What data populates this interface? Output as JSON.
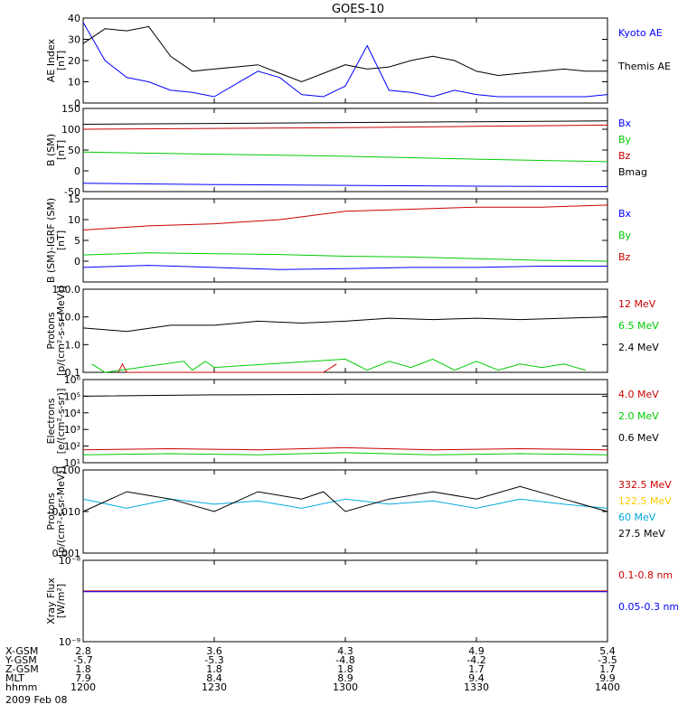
{
  "title": "GOES-10",
  "chart_data": [
    {
      "type": "line",
      "ylabel": [
        "AE Index",
        "[nT]"
      ],
      "ylim": [
        0,
        40
      ],
      "yticks": [
        "0",
        "10",
        "20",
        "30",
        "40"
      ],
      "series": [
        {
          "name": "Kyoto AE",
          "color": "#0000ff",
          "x": [
            0,
            5,
            10,
            15,
            20,
            25,
            30,
            35,
            40,
            45,
            50,
            55,
            60,
            65,
            70,
            75,
            80,
            85,
            90,
            95,
            100,
            105,
            110,
            115,
            120
          ],
          "y": [
            38,
            20,
            12,
            10,
            6,
            5,
            3,
            9,
            15,
            12,
            4,
            3,
            8,
            27,
            6,
            5,
            3,
            6,
            4,
            3,
            3,
            3,
            3,
            3,
            4
          ]
        },
        {
          "name": "Themis AE",
          "color": "#000000",
          "x": [
            0,
            5,
            10,
            15,
            20,
            25,
            30,
            35,
            40,
            45,
            50,
            55,
            60,
            65,
            70,
            75,
            80,
            85,
            90,
            95,
            100,
            105,
            110,
            115,
            120
          ],
          "y": [
            28,
            35,
            34,
            36,
            22,
            15,
            16,
            17,
            18,
            14,
            10,
            14,
            18,
            16,
            17,
            20,
            22,
            20,
            15,
            13,
            14,
            15,
            16,
            15,
            15
          ]
        }
      ]
    },
    {
      "type": "line",
      "ylabel": [
        "B (SM)",
        "[nT]"
      ],
      "ylim": [
        -50,
        150
      ],
      "yticks": [
        "-50",
        "0",
        "50",
        "100",
        "150"
      ],
      "series": [
        {
          "name": "Bx",
          "color": "#0000ff",
          "x": [
            0,
            30,
            60,
            90,
            120
          ],
          "y": [
            -30,
            -33,
            -35,
            -37,
            -38
          ]
        },
        {
          "name": "By",
          "color": "#00cc00",
          "x": [
            0,
            30,
            60,
            90,
            120
          ],
          "y": [
            45,
            40,
            35,
            28,
            22
          ]
        },
        {
          "name": "Bz",
          "color": "#cc0000",
          "x": [
            0,
            30,
            60,
            90,
            120
          ],
          "y": [
            100,
            102,
            104,
            107,
            110
          ]
        },
        {
          "name": "Bmag",
          "color": "#000000",
          "x": [
            0,
            30,
            60,
            90,
            120
          ],
          "y": [
            112,
            114,
            116,
            118,
            120
          ]
        }
      ]
    },
    {
      "type": "line",
      "ylabel": [
        "B (SM)-IGRF (SM)",
        "[nT]"
      ],
      "ylim": [
        -5,
        15
      ],
      "yticks": [
        "0",
        "5",
        "10",
        "15"
      ],
      "series": [
        {
          "name": "Bx",
          "color": "#0000ff",
          "x": [
            0,
            15,
            30,
            45,
            60,
            75,
            90,
            105,
            120
          ],
          "y": [
            -1.5,
            -1,
            -1.5,
            -2,
            -1.8,
            -1.5,
            -1.5,
            -1.2,
            -1.2
          ]
        },
        {
          "name": "By",
          "color": "#00cc00",
          "x": [
            0,
            15,
            30,
            45,
            60,
            75,
            90,
            105,
            120
          ],
          "y": [
            1.5,
            2,
            1.8,
            1.6,
            1.2,
            1,
            0.6,
            0.2,
            0
          ]
        },
        {
          "name": "Bz",
          "color": "#cc0000",
          "x": [
            0,
            15,
            30,
            45,
            60,
            75,
            90,
            105,
            120
          ],
          "y": [
            7.5,
            8.5,
            9,
            10,
            12,
            12.5,
            13,
            13,
            13.5
          ]
        }
      ]
    },
    {
      "type": "line",
      "ylabel": [
        "Protons",
        "[p/(cm²-s-sr-MeV)]"
      ],
      "ylim": [
        0.1,
        100
      ],
      "log": true,
      "yticks": [
        "0.1",
        "1.0",
        "10.0",
        "100.0"
      ],
      "series": [
        {
          "name": "12 MeV",
          "color": "#cc0000",
          "x": [
            8,
            9,
            10,
            55,
            58
          ],
          "y": [
            0.1,
            0.2,
            0.1,
            0.1,
            0.2
          ]
        },
        {
          "name": "6.5 MeV",
          "color": "#00cc00",
          "x": [
            2,
            5,
            23,
            25,
            28,
            30,
            60,
            65,
            70,
            75,
            80,
            85,
            90,
            95,
            100,
            105,
            110,
            115
          ],
          "y": [
            0.2,
            0.1,
            0.25,
            0.12,
            0.25,
            0.15,
            0.3,
            0.12,
            0.25,
            0.15,
            0.3,
            0.12,
            0.25,
            0.12,
            0.2,
            0.15,
            0.2,
            0.12
          ]
        },
        {
          "name": "2.4 MeV",
          "color": "#000000",
          "x": [
            0,
            10,
            20,
            30,
            40,
            50,
            60,
            70,
            80,
            90,
            100,
            110,
            120
          ],
          "y": [
            4,
            3,
            5,
            5,
            7,
            6,
            7,
            9,
            8,
            9,
            8,
            9,
            10
          ]
        }
      ]
    },
    {
      "type": "line",
      "ylabel": [
        "Electrons",
        "[e/(cm²-s-sr)]"
      ],
      "ylim": [
        10,
        1000000
      ],
      "log": true,
      "yticks": [
        "10¹",
        "10²",
        "10³",
        "10⁴",
        "10⁵",
        "10⁶"
      ],
      "series": [
        {
          "name": "4.0 MeV",
          "color": "#cc0000",
          "x": [
            0,
            20,
            40,
            60,
            80,
            100,
            120
          ],
          "y": [
            60,
            70,
            60,
            80,
            60,
            70,
            60
          ]
        },
        {
          "name": "2.0 MeV",
          "color": "#00cc00",
          "x": [
            0,
            20,
            40,
            60,
            80,
            100,
            120
          ],
          "y": [
            30,
            35,
            30,
            40,
            30,
            35,
            30
          ]
        },
        {
          "name": "0.6 MeV",
          "color": "#000000",
          "x": [
            0,
            30,
            60,
            90,
            120
          ],
          "y": [
            100000,
            120000,
            130000,
            130000,
            130000
          ]
        }
      ]
    },
    {
      "type": "line",
      "ylabel": [
        "Protons",
        "[p/(cm²-s-sr-MeV)]"
      ],
      "ylim": [
        0.001,
        0.1
      ],
      "log": true,
      "yticks": [
        "0.001",
        "0.010",
        "0.100"
      ],
      "series": [
        {
          "name": "332.5 MeV",
          "color": "#cc0000",
          "x": [],
          "y": []
        },
        {
          "name": "122.5 MeV",
          "color": "#ffcc00",
          "x": [],
          "y": []
        },
        {
          "name": "60 MeV",
          "color": "#00aadd",
          "x": [
            0,
            10,
            20,
            30,
            40,
            50,
            60,
            70,
            80,
            90,
            100,
            110,
            120
          ],
          "y": [
            0.02,
            0.012,
            0.02,
            0.015,
            0.018,
            0.012,
            0.02,
            0.015,
            0.018,
            0.012,
            0.02,
            0.015,
            0.012
          ]
        },
        {
          "name": "27.5 MeV",
          "color": "#000000",
          "x": [
            0,
            10,
            20,
            30,
            40,
            50,
            55,
            60,
            70,
            80,
            90,
            100,
            110,
            120
          ],
          "y": [
            0.01,
            0.03,
            0.02,
            0.01,
            0.03,
            0.02,
            0.03,
            0.01,
            0.02,
            0.03,
            0.02,
            0.04,
            0.02,
            0.01
          ]
        }
      ]
    },
    {
      "type": "line",
      "ylabel": [
        "Xray Flux",
        "[W/m²]"
      ],
      "ylim": [
        1e-09,
        1e-08
      ],
      "log": true,
      "yticks": [
        "10⁻⁹",
        "10⁻⁸"
      ],
      "series": [
        {
          "name": "0.1-0.8 nm",
          "color": "#cc0000",
          "x": [
            0,
            120
          ],
          "y": [
            4.2e-09,
            4.2e-09
          ]
        },
        {
          "name": "0.05-0.3 nm",
          "color": "#0000ff",
          "x": [
            0,
            120
          ],
          "y": [
            4.1e-09,
            4.1e-09
          ]
        }
      ]
    }
  ],
  "xaxis": {
    "row_labels": [
      "X-GSM",
      "Y-GSM",
      "Z-GSM",
      "MLT",
      "hhmm"
    ],
    "columns": [
      {
        "minute": 0,
        "values": [
          "2.8",
          "-5.7",
          "1.8",
          "7.9",
          "1200"
        ]
      },
      {
        "minute": 30,
        "values": [
          "3.6",
          "-5.3",
          "1.8",
          "8.4",
          "1230"
        ]
      },
      {
        "minute": 60,
        "values": [
          "4.3",
          "-4.8",
          "1.8",
          "8.9",
          "1300"
        ]
      },
      {
        "minute": 90,
        "values": [
          "4.9",
          "-4.2",
          "1.7",
          "9.4",
          "1330"
        ]
      },
      {
        "minute": 120,
        "values": [
          "5.4",
          "-3.5",
          "1.7",
          "9.9",
          "1400"
        ]
      }
    ],
    "date": "2009 Feb 08"
  }
}
